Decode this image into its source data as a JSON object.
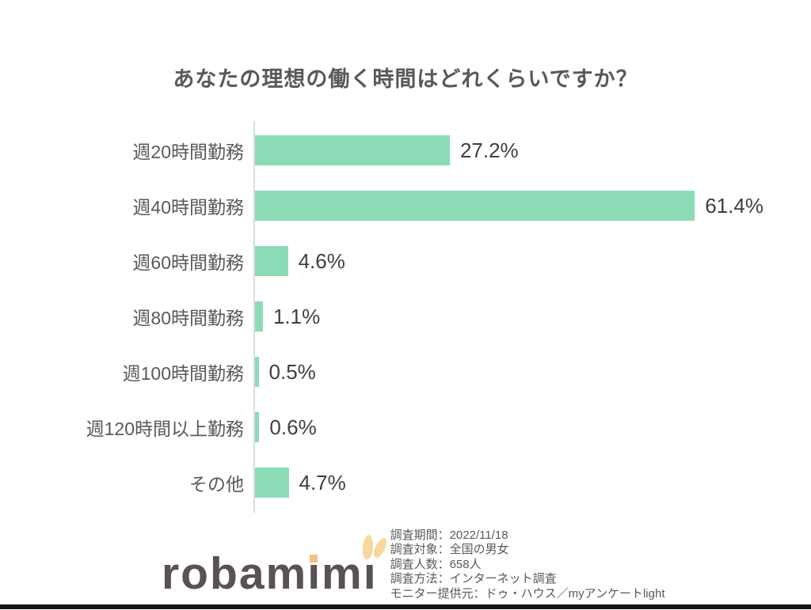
{
  "title": "あなたの理想の働く時間はどれくらいですか？",
  "chart_data": {
    "type": "bar",
    "orientation": "horizontal",
    "title": "あなたの理想の働く時間はどれくらいですか？",
    "categories": [
      "週20時間勤務",
      "週40時間勤務",
      "週60時間勤務",
      "週80時間勤務",
      "週100時間勤務",
      "週120時間以上勤務",
      "その他"
    ],
    "values": [
      27.2,
      61.4,
      4.6,
      1.1,
      0.5,
      0.6,
      4.7
    ],
    "value_labels": [
      "27.2%",
      "61.4%",
      "4.6%",
      "1.1%",
      "0.5%",
      "0.6%",
      "4.7%"
    ],
    "unit": "%",
    "xlim": [
      0,
      70
    ],
    "grid": false,
    "legend": false,
    "bar_color": "#8bdbb7",
    "axis_color": "#dcdcdc",
    "category_label_color": "#595959",
    "value_label_color": "#3f3f3f",
    "title_color": "#595959"
  },
  "footer": {
    "logo": {
      "text": "robamimi",
      "seg1": "robam",
      "i1": "ı",
      "seg2": "m",
      "i2": "ı",
      "text_color": "#595153",
      "dot_color": "#f4c182",
      "ear_color": "#f8d7a0"
    },
    "survey_info": [
      "調査期間：2022/11/18",
      "調査対象：全国の男女",
      "調査人数：658人",
      "調査方法：インターネット調査",
      "モニター提供元：ドゥ・ハウス／myアンケートlight"
    ]
  },
  "bottom_rule_color": "#141414"
}
